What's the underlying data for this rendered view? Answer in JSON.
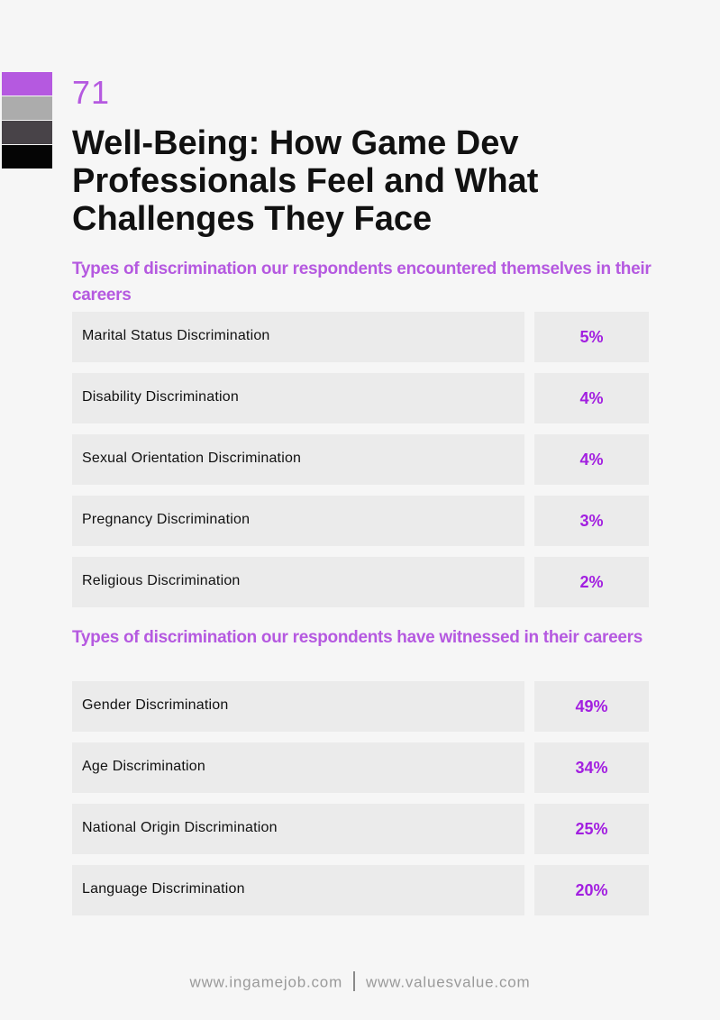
{
  "swatches": [
    "#b559e0",
    "#acacac",
    "#484348",
    "#050505"
  ],
  "page_number": "71",
  "title": "Well-Being: How Game Dev Professionals Feel and What Challenges They Face",
  "sections": [
    {
      "title": "Types of discrimination our respondents encountered themselves in their careers",
      "items": [
        {
          "label": "Marital Status Discrimination",
          "value": "5%"
        },
        {
          "label": "Disability Discrimination",
          "value": "4%"
        },
        {
          "label": "Sexual Orientation Discrimination",
          "value": "4%"
        },
        {
          "label": "Pregnancy Discrimination",
          "value": "3%"
        },
        {
          "label": "Religious Discrimination",
          "value": "2%"
        }
      ]
    },
    {
      "title": "Types of discrimination our respondents have witnessed in their careers",
      "items": [
        {
          "label": "Gender Discrimination",
          "value": "49%"
        },
        {
          "label": "Age Discrimination",
          "value": "34%"
        },
        {
          "label": "National Origin Discrimination",
          "value": "25%"
        },
        {
          "label": "Language Discrimination",
          "value": "20%"
        }
      ]
    }
  ],
  "footer": {
    "link1": "www.ingamejob.com",
    "link2": "www.valuesvalue.com"
  }
}
